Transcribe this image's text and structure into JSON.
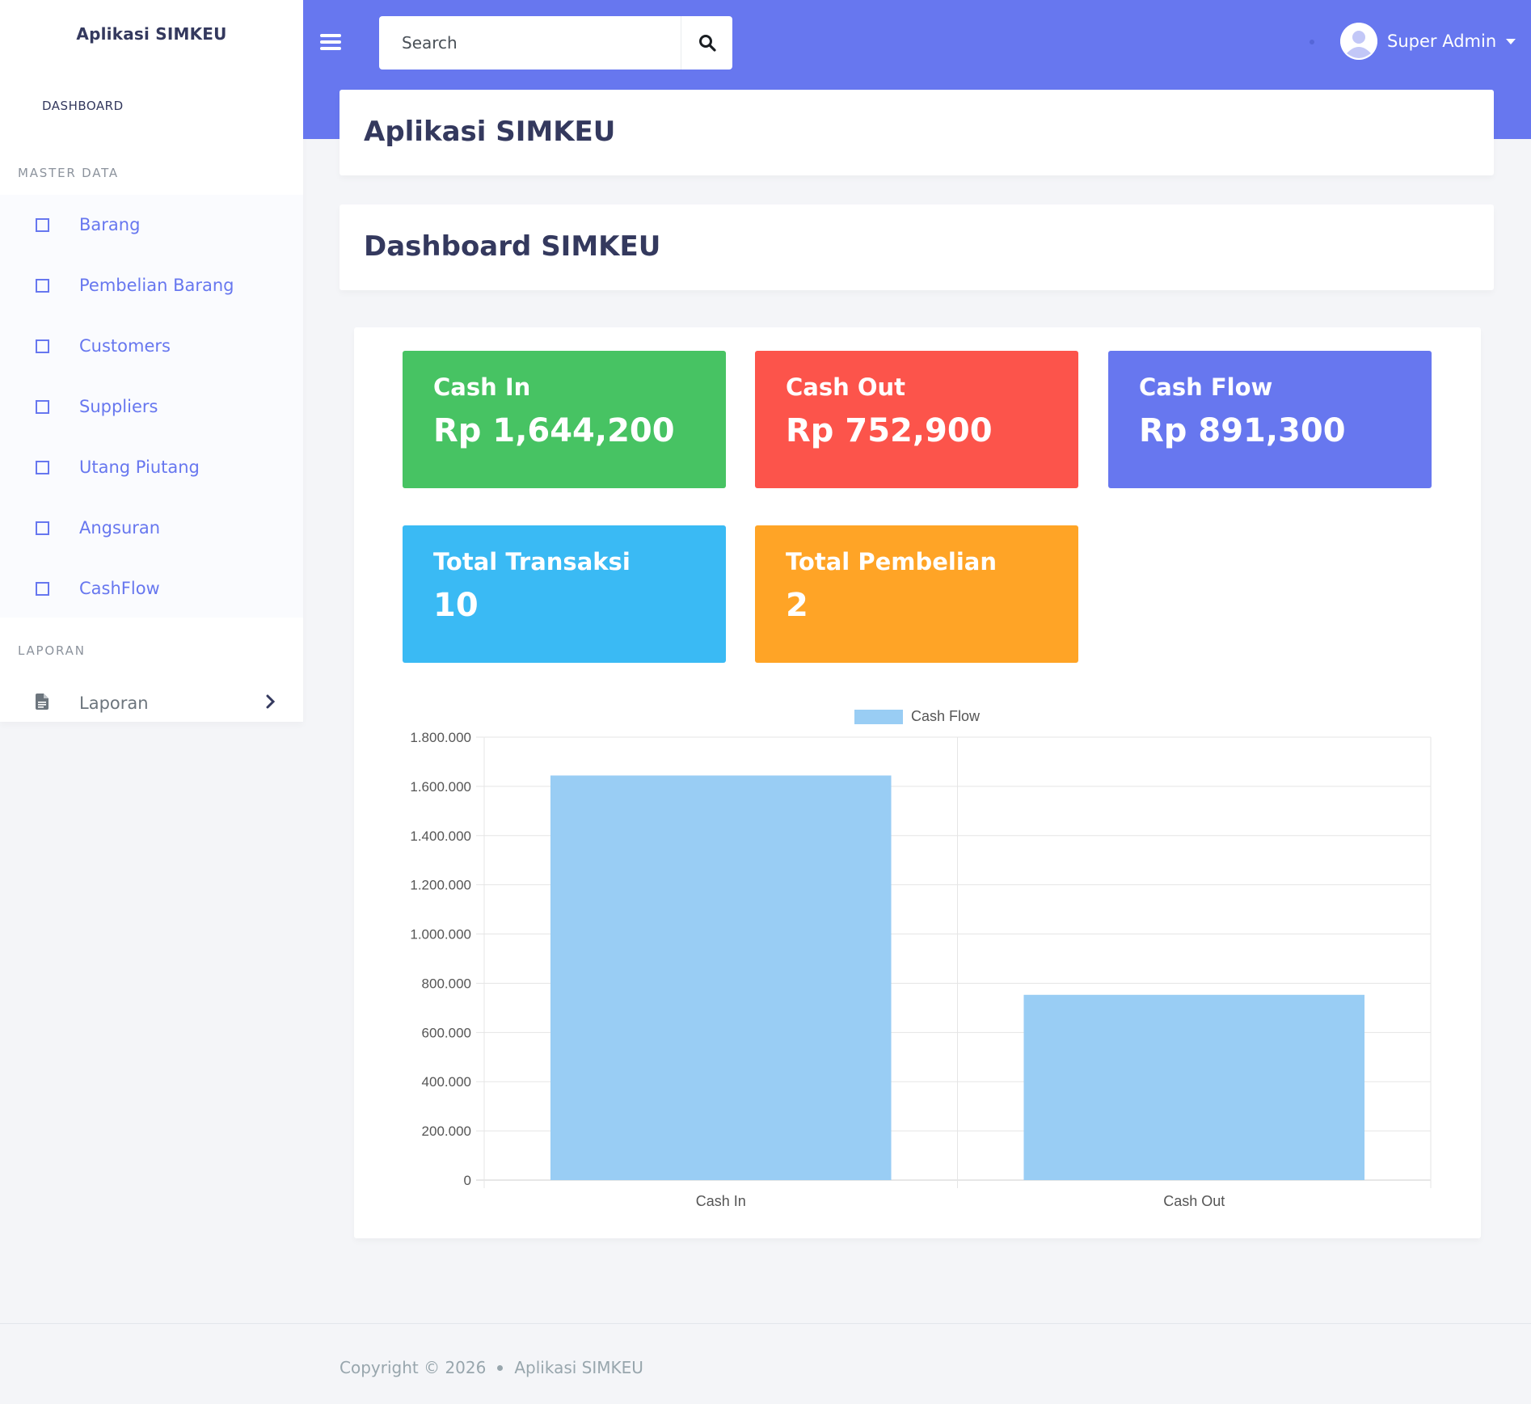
{
  "app": {
    "brand": "Aplikasi SIMKEU"
  },
  "topbar": {
    "search_placeholder": "Search",
    "user_name": "Super Admin"
  },
  "sidebar": {
    "dashboard_link": "DASHBOARD",
    "section_master": "MASTER DATA",
    "items": [
      {
        "label": "Barang"
      },
      {
        "label": "Pembelian Barang"
      },
      {
        "label": "Customers"
      },
      {
        "label": "Suppliers"
      },
      {
        "label": "Utang Piutang"
      },
      {
        "label": "Angsuran"
      },
      {
        "label": "CashFlow"
      }
    ],
    "section_laporan": "LAPORAN",
    "laporan_label": "Laporan"
  },
  "main": {
    "page_title": "Aplikasi SIMKEU",
    "section_title": "Dashboard SIMKEU",
    "stats": [
      {
        "title": "Cash In",
        "value": "Rp 1,644,200",
        "color": "#47c363"
      },
      {
        "title": "Cash Out",
        "value": "Rp 752,900",
        "color": "#fc544b"
      },
      {
        "title": "Cash Flow",
        "value": "Rp 891,300",
        "color": "#6777ef"
      },
      {
        "title": "Total Transaksi",
        "value": "10",
        "color": "#3abaf4"
      },
      {
        "title": "Total Pembelian",
        "value": "2",
        "color": "#ffa426"
      }
    ]
  },
  "chart_data": {
    "type": "bar",
    "categories": [
      "Cash In",
      "Cash Out"
    ],
    "series": [
      {
        "name": "Cash Flow",
        "values": [
          1644200,
          752900
        ],
        "color": "#99cdf4"
      }
    ],
    "ylim": [
      0,
      1800000
    ],
    "yticks": [
      "0",
      "200.000",
      "400.000",
      "600.000",
      "800.000",
      "1.000.000",
      "1.200.000",
      "1.400.000",
      "1.600.000",
      "1.800.000"
    ],
    "legend": "top-center",
    "grid": true
  },
  "footer": {
    "copyright": "Copyright © 2026",
    "app_name": "Aplikasi SIMKEU"
  }
}
